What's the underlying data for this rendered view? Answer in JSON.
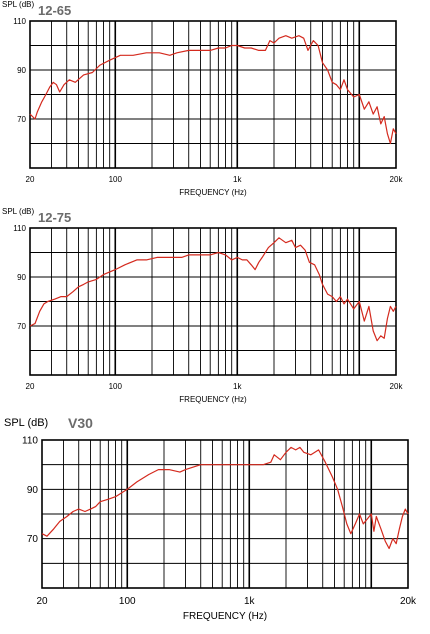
{
  "chart_data": [
    {
      "type": "line",
      "title": "12-65",
      "ylabel": "SPL (dB)",
      "xlabel": "FREQUENCY (Hz)",
      "x_scale": "log",
      "xlim": [
        20,
        20000
      ],
      "ylim": [
        50,
        110
      ],
      "x_ticks": [
        {
          "value": 20,
          "label": "20"
        },
        {
          "value": 100,
          "label": "100"
        },
        {
          "value": 1000,
          "label": "1k"
        },
        {
          "value": 20000,
          "label": "20k"
        }
      ],
      "y_ticks": [
        {
          "value": 110,
          "label": "110"
        },
        {
          "value": 90,
          "label": "90"
        },
        {
          "value": 70,
          "label": "70"
        }
      ],
      "grid": true,
      "series": [
        {
          "color": "#d42a1e",
          "points": [
            [
              20,
              72
            ],
            [
              22,
              70
            ],
            [
              23,
              73
            ],
            [
              25,
              77
            ],
            [
              27,
              80
            ],
            [
              29,
              83
            ],
            [
              31,
              85
            ],
            [
              33,
              84
            ],
            [
              35,
              81
            ],
            [
              38,
              84
            ],
            [
              42,
              86
            ],
            [
              47,
              85
            ],
            [
              55,
              88
            ],
            [
              65,
              89
            ],
            [
              75,
              92
            ],
            [
              90,
              94
            ],
            [
              110,
              96
            ],
            [
              140,
              96
            ],
            [
              180,
              97
            ],
            [
              230,
              97
            ],
            [
              280,
              96
            ],
            [
              320,
              97
            ],
            [
              400,
              98
            ],
            [
              500,
              98
            ],
            [
              600,
              98
            ],
            [
              700,
              99
            ],
            [
              800,
              99
            ],
            [
              900,
              100
            ],
            [
              1000,
              100
            ],
            [
              1150,
              99
            ],
            [
              1300,
              99
            ],
            [
              1500,
              98
            ],
            [
              1700,
              98
            ],
            [
              1850,
              102
            ],
            [
              2000,
              101
            ],
            [
              2200,
              103
            ],
            [
              2500,
              104
            ],
            [
              2800,
              103
            ],
            [
              3200,
              104
            ],
            [
              3500,
              103
            ],
            [
              3800,
              98
            ],
            [
              4200,
              102
            ],
            [
              4600,
              100
            ],
            [
              5000,
              93
            ],
            [
              5500,
              90
            ],
            [
              6000,
              85
            ],
            [
              6500,
              84
            ],
            [
              7000,
              82
            ],
            [
              7500,
              86
            ],
            [
              8000,
              82
            ],
            [
              9000,
              79
            ],
            [
              10000,
              80
            ],
            [
              11000,
              74
            ],
            [
              12000,
              77
            ],
            [
              13000,
              72
            ],
            [
              14000,
              75
            ],
            [
              15000,
              68
            ],
            [
              16000,
              71
            ],
            [
              17000,
              64
            ],
            [
              18000,
              60
            ],
            [
              19000,
              66
            ],
            [
              20000,
              64
            ]
          ]
        }
      ]
    },
    {
      "type": "line",
      "title": "12-75",
      "ylabel": "SPL (dB)",
      "xlabel": "FREQUENCY (Hz)",
      "x_scale": "log",
      "xlim": [
        20,
        20000
      ],
      "ylim": [
        50,
        110
      ],
      "x_ticks": [
        {
          "value": 20,
          "label": "20"
        },
        {
          "value": 100,
          "label": "100"
        },
        {
          "value": 1000,
          "label": "1k"
        },
        {
          "value": 20000,
          "label": "20k"
        }
      ],
      "y_ticks": [
        {
          "value": 110,
          "label": "110"
        },
        {
          "value": 90,
          "label": "90"
        },
        {
          "value": 70,
          "label": "70"
        }
      ],
      "grid": true,
      "series": [
        {
          "color": "#d42a1e",
          "points": [
            [
              20,
              70
            ],
            [
              22,
              71
            ],
            [
              24,
              76
            ],
            [
              26,
              79
            ],
            [
              28,
              80
            ],
            [
              32,
              81
            ],
            [
              36,
              82
            ],
            [
              40,
              82
            ],
            [
              45,
              84
            ],
            [
              50,
              86
            ],
            [
              55,
              87
            ],
            [
              60,
              88
            ],
            [
              70,
              89
            ],
            [
              80,
              91
            ],
            [
              100,
              93
            ],
            [
              120,
              95
            ],
            [
              150,
              97
            ],
            [
              180,
              97
            ],
            [
              220,
              98
            ],
            [
              260,
              98
            ],
            [
              300,
              98
            ],
            [
              350,
              98
            ],
            [
              400,
              99
            ],
            [
              500,
              99
            ],
            [
              600,
              99
            ],
            [
              700,
              100
            ],
            [
              800,
              99
            ],
            [
              900,
              97
            ],
            [
              1000,
              98
            ],
            [
              1100,
              97
            ],
            [
              1200,
              97
            ],
            [
              1300,
              95
            ],
            [
              1400,
              93
            ],
            [
              1500,
              96
            ],
            [
              1600,
              98
            ],
            [
              1800,
              102
            ],
            [
              2000,
              104
            ],
            [
              2200,
              106
            ],
            [
              2500,
              104
            ],
            [
              2800,
              105
            ],
            [
              3000,
              102
            ],
            [
              3300,
              103
            ],
            [
              3600,
              101
            ],
            [
              3900,
              96
            ],
            [
              4300,
              95
            ],
            [
              4700,
              91
            ],
            [
              5000,
              87
            ],
            [
              5500,
              83
            ],
            [
              6000,
              82
            ],
            [
              6500,
              80
            ],
            [
              7000,
              82
            ],
            [
              7500,
              79
            ],
            [
              8000,
              81
            ],
            [
              9000,
              77
            ],
            [
              10000,
              80
            ],
            [
              11000,
              72
            ],
            [
              12000,
              78
            ],
            [
              13000,
              68
            ],
            [
              14000,
              64
            ],
            [
              15000,
              66
            ],
            [
              16000,
              65
            ],
            [
              17000,
              73
            ],
            [
              18000,
              78
            ],
            [
              19000,
              76
            ],
            [
              20000,
              78
            ]
          ]
        }
      ]
    },
    {
      "type": "line",
      "title": "V30",
      "ylabel": "SPL (dB)",
      "xlabel": "FREQUENCY (Hz)",
      "x_scale": "log",
      "xlim": [
        20,
        20000
      ],
      "ylim": [
        50,
        110
      ],
      "x_ticks": [
        {
          "value": 20,
          "label": "20"
        },
        {
          "value": 100,
          "label": "100"
        },
        {
          "value": 1000,
          "label": "1k"
        },
        {
          "value": 20000,
          "label": "20k"
        }
      ],
      "y_ticks": [
        {
          "value": 110,
          "label": "110"
        },
        {
          "value": 90,
          "label": "90"
        },
        {
          "value": 70,
          "label": "70"
        }
      ],
      "grid": true,
      "series": [
        {
          "color": "#d42a1e",
          "points": [
            [
              20,
              72
            ],
            [
              22,
              71
            ],
            [
              25,
              74
            ],
            [
              28,
              77
            ],
            [
              32,
              79
            ],
            [
              36,
              81
            ],
            [
              40,
              82
            ],
            [
              45,
              81
            ],
            [
              50,
              82
            ],
            [
              55,
              83
            ],
            [
              60,
              85
            ],
            [
              70,
              86
            ],
            [
              80,
              87
            ],
            [
              100,
              90
            ],
            [
              120,
              93
            ],
            [
              150,
              96
            ],
            [
              180,
              98
            ],
            [
              220,
              98
            ],
            [
              270,
              97
            ],
            [
              300,
              98
            ],
            [
              400,
              100
            ],
            [
              500,
              100
            ],
            [
              600,
              100
            ],
            [
              700,
              100
            ],
            [
              800,
              100
            ],
            [
              900,
              100
            ],
            [
              1000,
              100
            ],
            [
              1100,
              100
            ],
            [
              1300,
              100
            ],
            [
              1500,
              101
            ],
            [
              1600,
              104
            ],
            [
              1800,
              102
            ],
            [
              2000,
              105
            ],
            [
              2200,
              107
            ],
            [
              2400,
              106
            ],
            [
              2600,
              107
            ],
            [
              2800,
              105
            ],
            [
              3200,
              104
            ],
            [
              3700,
              106
            ],
            [
              4200,
              101
            ],
            [
              4800,
              95
            ],
            [
              5300,
              90
            ],
            [
              5800,
              83
            ],
            [
              6300,
              76
            ],
            [
              6800,
              72
            ],
            [
              7400,
              76
            ],
            [
              8000,
              80
            ],
            [
              8600,
              76
            ],
            [
              9300,
              78
            ],
            [
              10000,
              80
            ],
            [
              10500,
              73
            ],
            [
              11000,
              79
            ],
            [
              12000,
              74
            ],
            [
              13000,
              69
            ],
            [
              14000,
              66
            ],
            [
              15000,
              70
            ],
            [
              16000,
              68
            ],
            [
              17000,
              74
            ],
            [
              18000,
              79
            ],
            [
              19000,
              82
            ],
            [
              20000,
              80
            ]
          ]
        }
      ]
    }
  ]
}
